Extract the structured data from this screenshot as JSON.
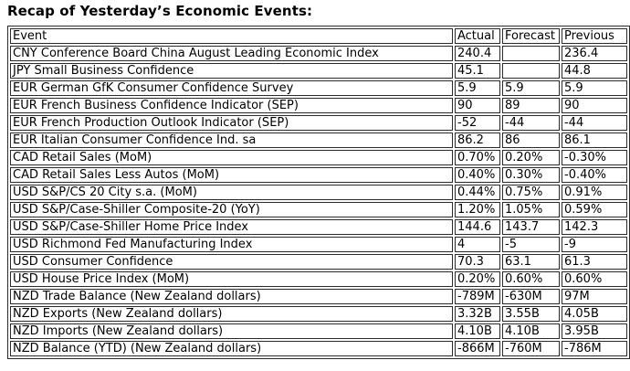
{
  "page": {
    "title": "Recap of Yesterday’s Economic Events:"
  },
  "colors": {
    "text": "#000000",
    "border": "#2b2b2b",
    "background": "#ffffff"
  },
  "table": {
    "headers": {
      "event": "Event",
      "actual": "Actual",
      "forecast": "Forecast",
      "previous": "Previous"
    },
    "rows": [
      {
        "event": "CNY Conference Board China August Leading Economic Index",
        "actual": "240.4",
        "forecast": "",
        "previous": "236.4"
      },
      {
        "event": "JPY Small Business Confidence",
        "actual": "45.1",
        "forecast": "",
        "previous": "44.8"
      },
      {
        "event": "EUR German GfK Consumer Confidence Survey",
        "actual": "5.9",
        "forecast": "5.9",
        "previous": "5.9"
      },
      {
        "event": "EUR French Business Confidence Indicator (SEP)",
        "actual": "90",
        "forecast": "89",
        "previous": "90"
      },
      {
        "event": "EUR French Production Outlook Indicator (SEP)",
        "actual": "-52",
        "forecast": "-44",
        "previous": "-44"
      },
      {
        "event": "EUR Italian Consumer Confidence Ind. sa",
        "actual": "86.2",
        "forecast": "86",
        "previous": "86.1"
      },
      {
        "event": "CAD Retail Sales (MoM)",
        "actual": "0.70%",
        "forecast": "0.20%",
        "previous": "-0.30%"
      },
      {
        "event": "CAD Retail Sales Less Autos (MoM)",
        "actual": "0.40%",
        "forecast": "0.30%",
        "previous": "-0.40%"
      },
      {
        "event": "USD S&P/CS 20 City s.a. (MoM)",
        "actual": "0.44%",
        "forecast": "0.75%",
        "previous": "0.91%"
      },
      {
        "event": "USD S&P/Case-Shiller Composite-20 (YoY)",
        "actual": "1.20%",
        "forecast": "1.05%",
        "previous": "0.59%"
      },
      {
        "event": "USD S&P/Case-Shiller Home Price Index",
        "actual": "144.6",
        "forecast": "143.7",
        "previous": "142.3"
      },
      {
        "event": "USD Richmond Fed Manufacturing Index",
        "actual": "4",
        "forecast": "-5",
        "previous": "-9"
      },
      {
        "event": "USD Consumer Confidence",
        "actual": "70.3",
        "forecast": "63.1",
        "previous": "61.3"
      },
      {
        "event": "USD House Price Index (MoM)",
        "actual": "0.20%",
        "forecast": "0.60%",
        "previous": "0.60%"
      },
      {
        "event": "NZD Trade Balance (New Zealand dollars)",
        "actual": "-789M",
        "forecast": "-630M",
        "previous": "97M"
      },
      {
        "event": "NZD Exports (New Zealand dollars)",
        "actual": "3.32B",
        "forecast": "3.55B",
        "previous": "4.05B"
      },
      {
        "event": "NZD Imports (New Zealand dollars)",
        "actual": "4.10B",
        "forecast": "4.10B",
        "previous": "3.95B"
      },
      {
        "event": "NZD Balance (YTD) (New Zealand dollars)",
        "actual": "-866M",
        "forecast": "-760M",
        "previous": "-786M"
      }
    ]
  }
}
